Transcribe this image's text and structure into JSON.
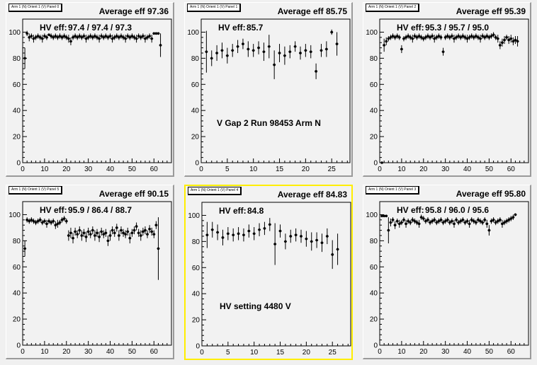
{
  "chart_data": [
    {
      "type": "scatter",
      "panel_title": "Arm 1 (N) Orient 1 (V) Panel 0",
      "average_label": "Average eff 97.36",
      "hv_label": "HV eff:",
      "hv_values": "97.4 / 97.4 / 97.3",
      "annotation": "",
      "xlim": [
        0,
        68
      ],
      "ylim": [
        0,
        110
      ],
      "xticks": [
        0,
        10,
        20,
        30,
        40,
        50,
        60
      ],
      "yticks": [
        0,
        20,
        40,
        60,
        80,
        100
      ],
      "x": [
        1,
        2,
        3,
        4,
        5,
        6,
        7,
        8,
        9,
        10,
        11,
        12,
        13,
        14,
        15,
        16,
        17,
        18,
        19,
        20,
        21,
        22,
        23,
        24,
        25,
        26,
        27,
        28,
        29,
        30,
        31,
        32,
        33,
        34,
        35,
        36,
        37,
        38,
        39,
        40,
        41,
        42,
        43,
        44,
        45,
        46,
        47,
        48,
        49,
        50,
        51,
        52,
        53,
        54,
        55,
        56,
        57,
        58,
        59,
        60,
        61,
        62,
        63
      ],
      "y": [
        80,
        99,
        96,
        97,
        95,
        96,
        97,
        96,
        95,
        97,
        96,
        98,
        97,
        96,
        97,
        96,
        97,
        96,
        97,
        96,
        95,
        93,
        96,
        97,
        96,
        97,
        96,
        97,
        95,
        96,
        97,
        96,
        97,
        96,
        95,
        97,
        96,
        97,
        96,
        97,
        95,
        96,
        97,
        96,
        97,
        96,
        95,
        97,
        96,
        97,
        96,
        95,
        97,
        96,
        97,
        95,
        96,
        97,
        95,
        99,
        99,
        99,
        90
      ],
      "yerr": [
        8,
        2,
        3,
        2,
        3,
        2,
        2,
        2,
        3,
        2,
        2,
        1,
        2,
        2,
        2,
        2,
        2,
        2,
        2,
        2,
        3,
        3,
        2,
        2,
        2,
        2,
        2,
        2,
        3,
        2,
        2,
        2,
        2,
        2,
        3,
        2,
        2,
        2,
        2,
        2,
        3,
        2,
        2,
        2,
        2,
        2,
        3,
        2,
        2,
        2,
        2,
        3,
        2,
        2,
        2,
        3,
        2,
        2,
        3,
        1,
        1,
        1,
        9
      ]
    },
    {
      "type": "scatter",
      "panel_title": "Arm 1 (N) Orient 1 (V) Panel 1",
      "average_label": "Average eff 85.75",
      "hv_label": "HV eff:",
      "hv_values": "85.7",
      "annotation": "V Gap 2 Run 98453 Arm N",
      "xlim": [
        0,
        28.5
      ],
      "ylim": [
        0,
        110
      ],
      "xticks": [
        0,
        5,
        10,
        15,
        20,
        25
      ],
      "yticks": [
        0,
        20,
        40,
        60,
        80,
        100
      ],
      "x": [
        1,
        2,
        3,
        4,
        5,
        6,
        7,
        8,
        9,
        10,
        11,
        12,
        13,
        14,
        15,
        16,
        17,
        18,
        19,
        20,
        21,
        22,
        23,
        24,
        25,
        26
      ],
      "y": [
        85,
        80,
        84,
        86,
        82,
        86,
        89,
        91,
        87,
        86,
        88,
        85,
        89,
        75,
        84,
        82,
        85,
        89,
        84,
        86,
        85,
        70,
        86,
        87,
        100,
        91
      ],
      "yerr": [
        16,
        6,
        6,
        6,
        6,
        5,
        5,
        4,
        6,
        5,
        5,
        7,
        9,
        11,
        7,
        7,
        5,
        4,
        5,
        5,
        5,
        6,
        5,
        6,
        2,
        9
      ]
    },
    {
      "type": "scatter",
      "panel_title": "Arm 1 (N) Orient 1 (V) Panel 2",
      "average_label": "Average eff 95.39",
      "hv_label": "HV eff:",
      "hv_values": "95.3 / 95.7 / 95.0",
      "annotation": "",
      "xlim": [
        0,
        68
      ],
      "ylim": [
        0,
        110
      ],
      "xticks": [
        0,
        10,
        20,
        30,
        40,
        50,
        60
      ],
      "yticks": [
        0,
        20,
        40,
        60,
        80,
        100
      ],
      "x": [
        1,
        2,
        3,
        4,
        5,
        6,
        7,
        8,
        9,
        10,
        11,
        12,
        13,
        14,
        15,
        16,
        17,
        18,
        19,
        20,
        21,
        22,
        23,
        24,
        25,
        26,
        27,
        28,
        29,
        30,
        31,
        32,
        33,
        34,
        35,
        36,
        37,
        38,
        39,
        40,
        41,
        42,
        43,
        44,
        45,
        46,
        47,
        48,
        49,
        50,
        51,
        52,
        53,
        54,
        55,
        56,
        57,
        58,
        59,
        60,
        61,
        62,
        63
      ],
      "y": [
        0,
        90,
        93,
        95,
        96,
        97,
        96,
        97,
        96,
        87,
        95,
        96,
        97,
        96,
        95,
        97,
        96,
        97,
        96,
        95,
        96,
        97,
        96,
        97,
        95,
        96,
        97,
        96,
        85,
        96,
        97,
        96,
        97,
        95,
        96,
        97,
        96,
        97,
        96,
        95,
        96,
        97,
        96,
        97,
        96,
        95,
        97,
        96,
        97,
        96,
        97,
        98,
        96,
        95,
        90,
        92,
        94,
        96,
        94,
        95,
        93,
        94,
        93
      ],
      "yerr": [
        0,
        5,
        3,
        2,
        2,
        2,
        2,
        2,
        2,
        3,
        2,
        2,
        2,
        2,
        3,
        2,
        2,
        2,
        2,
        2,
        2,
        2,
        2,
        2,
        3,
        2,
        2,
        2,
        3,
        2,
        2,
        2,
        2,
        3,
        2,
        2,
        2,
        2,
        2,
        3,
        2,
        2,
        2,
        2,
        2,
        3,
        2,
        2,
        2,
        2,
        2,
        2,
        2,
        3,
        3,
        3,
        3,
        2,
        3,
        3,
        3,
        3,
        4
      ]
    },
    {
      "type": "scatter",
      "panel_title": "Arm 1 (N) Orient 1 (V) Panel 5",
      "average_label": "Average eff 90.15",
      "hv_label": "HV eff:",
      "hv_values": "95.9 / 86.4 / 88.7",
      "annotation": "",
      "xlim": [
        0,
        68
      ],
      "ylim": [
        0,
        110
      ],
      "xticks": [
        0,
        10,
        20,
        30,
        40,
        50,
        60
      ],
      "yticks": [
        0,
        20,
        40,
        60,
        80,
        100
      ],
      "x": [
        1,
        2,
        3,
        4,
        5,
        6,
        7,
        8,
        9,
        10,
        11,
        12,
        13,
        14,
        15,
        16,
        17,
        18,
        19,
        20,
        21,
        22,
        23,
        24,
        25,
        26,
        27,
        28,
        29,
        30,
        31,
        32,
        33,
        34,
        35,
        36,
        37,
        38,
        39,
        40,
        41,
        42,
        43,
        44,
        45,
        46,
        47,
        48,
        49,
        50,
        51,
        52,
        53,
        54,
        55,
        56,
        57,
        58,
        59,
        60,
        61,
        62
      ],
      "y": [
        74,
        96,
        95,
        96,
        95,
        94,
        95,
        96,
        94,
        95,
        93,
        95,
        94,
        95,
        92,
        93,
        94,
        96,
        97,
        95,
        84,
        86,
        82,
        87,
        85,
        88,
        84,
        86,
        83,
        87,
        85,
        88,
        84,
        86,
        83,
        87,
        85,
        86,
        80,
        84,
        88,
        86,
        90,
        84,
        88,
        86,
        85,
        87,
        82,
        86,
        88,
        91,
        86,
        84,
        87,
        88,
        85,
        89,
        87,
        85,
        92,
        74
      ],
      "yerr": [
        6,
        2,
        2,
        2,
        2,
        2,
        2,
        2,
        2,
        2,
        3,
        2,
        2,
        2,
        3,
        3,
        2,
        2,
        2,
        2,
        4,
        4,
        4,
        3,
        3,
        3,
        4,
        3,
        4,
        3,
        3,
        3,
        4,
        3,
        4,
        3,
        3,
        3,
        4,
        4,
        3,
        3,
        3,
        4,
        3,
        3,
        3,
        3,
        4,
        3,
        3,
        3,
        3,
        4,
        3,
        3,
        3,
        3,
        3,
        3,
        3,
        24
      ]
    },
    {
      "type": "scatter",
      "panel_title": "Arm 1 (N) Orient 1 (V) Panel 4",
      "average_label": "Average eff 84.83",
      "hv_label": "HV eff:",
      "hv_values": "84.8",
      "annotation": "HV setting 4480 V",
      "xlim": [
        0,
        28.5
      ],
      "ylim": [
        0,
        110
      ],
      "xticks": [
        0,
        5,
        10,
        15,
        20,
        25
      ],
      "yticks": [
        0,
        20,
        40,
        60,
        80,
        100
      ],
      "x": [
        1,
        2,
        3,
        4,
        5,
        6,
        7,
        8,
        9,
        10,
        11,
        12,
        13,
        14,
        15,
        16,
        17,
        18,
        19,
        20,
        21,
        22,
        23,
        24,
        25,
        26
      ],
      "y": [
        85,
        89,
        87,
        83,
        86,
        85,
        86,
        85,
        88,
        86,
        89,
        90,
        93,
        78,
        88,
        80,
        84,
        85,
        84,
        82,
        80,
        81,
        79,
        84,
        70,
        74
      ],
      "yerr": [
        10,
        6,
        6,
        6,
        5,
        5,
        5,
        5,
        5,
        5,
        5,
        5,
        5,
        16,
        5,
        6,
        5,
        5,
        5,
        6,
        7,
        6,
        7,
        6,
        11,
        12
      ]
    },
    {
      "type": "scatter",
      "panel_title": "Arm 1 (N) Orient 1 (V) Panel 3",
      "average_label": "Average eff 95.80",
      "hv_label": "HV eff:",
      "hv_values": "95.8 / 96.0 / 95.6",
      "annotation": "",
      "xlim": [
        0,
        68
      ],
      "ylim": [
        0,
        110
      ],
      "xticks": [
        0,
        10,
        20,
        30,
        40,
        50,
        60
      ],
      "yticks": [
        0,
        20,
        40,
        60,
        80,
        100
      ],
      "x": [
        1,
        2,
        3,
        4,
        5,
        6,
        7,
        8,
        9,
        10,
        11,
        12,
        13,
        14,
        15,
        16,
        17,
        18,
        19,
        20,
        21,
        22,
        23,
        24,
        25,
        26,
        27,
        28,
        29,
        30,
        31,
        32,
        33,
        34,
        35,
        36,
        37,
        38,
        39,
        40,
        41,
        42,
        43,
        44,
        45,
        46,
        47,
        48,
        49,
        50,
        51,
        52,
        53,
        54,
        55,
        56,
        57,
        58,
        59,
        60,
        61,
        62
      ],
      "y": [
        99,
        99,
        99,
        88,
        94,
        96,
        92,
        95,
        93,
        94,
        96,
        93,
        95,
        94,
        96,
        95,
        94,
        93,
        98,
        97,
        95,
        96,
        94,
        95,
        96,
        94,
        95,
        96,
        94,
        95,
        96,
        94,
        95,
        93,
        96,
        94,
        95,
        96,
        94,
        95,
        93,
        96,
        95,
        94,
        96,
        95,
        94,
        96,
        93,
        88,
        95,
        96,
        94,
        95,
        96,
        93,
        94,
        95,
        96,
        97,
        98,
        100
      ],
      "yerr": [
        1,
        1,
        1,
        10,
        3,
        2,
        3,
        2,
        3,
        2,
        2,
        3,
        2,
        2,
        2,
        2,
        2,
        3,
        2,
        2,
        2,
        2,
        2,
        2,
        2,
        2,
        2,
        2,
        2,
        2,
        2,
        2,
        2,
        3,
        2,
        2,
        2,
        2,
        2,
        2,
        3,
        2,
        2,
        2,
        2,
        2,
        2,
        2,
        3,
        4,
        2,
        2,
        2,
        2,
        2,
        3,
        2,
        2,
        2,
        2,
        2,
        1
      ]
    }
  ]
}
